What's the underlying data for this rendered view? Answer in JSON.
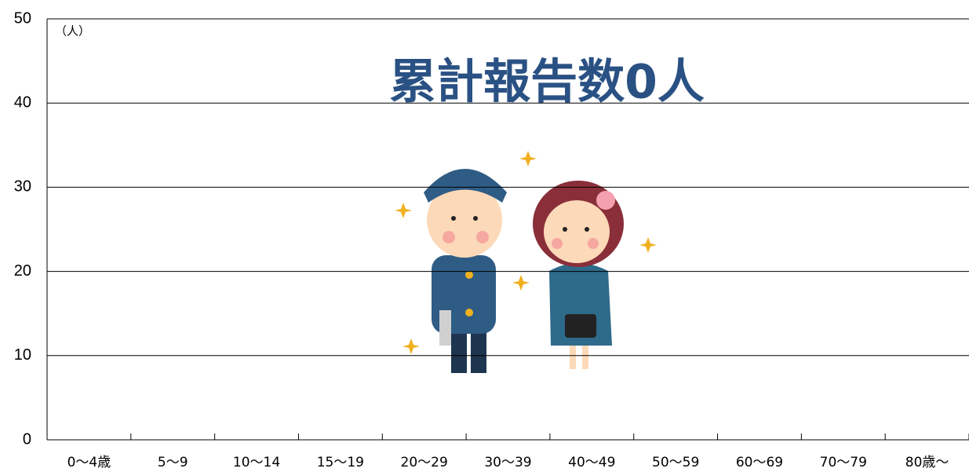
{
  "chart_data": {
    "type": "bar",
    "unit_label": "（人）",
    "annotation": "累計報告数0人",
    "categories": [
      "0～4歳",
      "5～9",
      "10～14",
      "15～19",
      "20～29",
      "30～39",
      "40～49",
      "50～59",
      "60～69",
      "70～79",
      "80歳～"
    ],
    "values": [
      0,
      0,
      0,
      0,
      0,
      0,
      0,
      0,
      0,
      0,
      0
    ],
    "color": "#2a5183",
    "ylim": [
      0,
      50
    ],
    "yticks": [
      0,
      10,
      20,
      30,
      40,
      50
    ],
    "grid": true
  }
}
